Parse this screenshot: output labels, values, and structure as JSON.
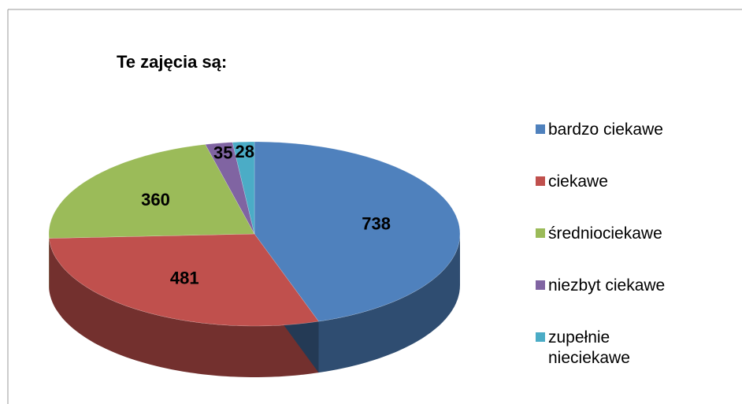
{
  "chart_data": {
    "type": "pie",
    "title": "Te zajęcia są:",
    "categories": [
      "bardzo ciekawe",
      "ciekawe",
      "średniociekawe",
      "niezbyt ciekawe",
      "zupełnie nieciekawe"
    ],
    "values": [
      738,
      481,
      360,
      35,
      28
    ],
    "colors": [
      "#4f81bd",
      "#c0504d",
      "#9bbb59",
      "#8064a2",
      "#4bacc6"
    ],
    "legend": "right"
  }
}
